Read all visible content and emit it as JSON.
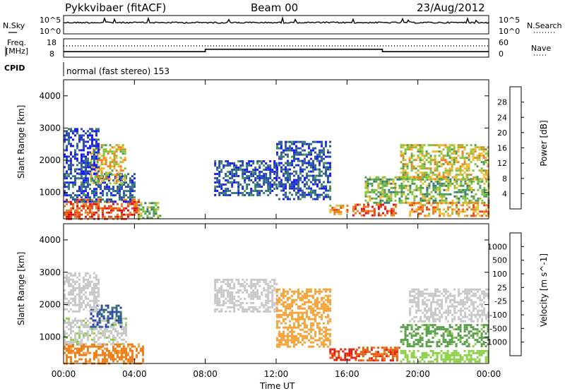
{
  "header": {
    "radar": "Pykkvibaer (fitACF)",
    "beam": "Beam 00",
    "date": "23/Aug/2012"
  },
  "top_panels": {
    "nsky_label": "N.Sky",
    "nsky_ticks": [
      "10^5",
      "10^0"
    ],
    "nsearch_label": "N.Search",
    "nsearch_ticks": [
      "10^5",
      "10^0"
    ],
    "freq_label": "Freq.",
    "freq_unit": "[MHz]",
    "freq_ticks": [
      "18",
      "8"
    ],
    "nave_label": "Nave",
    "nave_ticks": [
      "60",
      "0"
    ],
    "cpid_label": "CPID",
    "cpid_text": "normal (fast stereo) 153"
  },
  "colors": {
    "power_scale": [
      "#1a1aff",
      "#2a4ea8",
      "#36787a",
      "#4f9f4f",
      "#84c33c",
      "#f2b830",
      "#f07f1a",
      "#e84a14",
      "#e01010"
    ],
    "velocity_scale": [
      "#2838b8",
      "#2f5c8e",
      "#3a7f6c",
      "#5aa04a",
      "#8cd048",
      "#c8c8c8",
      "#f4a43a",
      "#f07e16",
      "#ec5a12",
      "#e02010"
    ]
  },
  "chart_data": [
    {
      "type": "heatmap",
      "ylabel": "Slant Range [km]",
      "xlabel": "",
      "xlim": [
        0,
        24
      ],
      "ylim": [
        180,
        4500
      ],
      "xticks": [
        "00:00",
        "04:00",
        "08:00",
        "12:00",
        "16:00",
        "20:00",
        "00:00"
      ],
      "yticks": [
        "1000",
        "2000",
        "3000",
        "4000"
      ],
      "colorbar_label": "Power [dB]",
      "colorbar_ticks": [
        "4",
        "8",
        "12",
        "16",
        "20",
        "24",
        "28"
      ],
      "regions": [
        {
          "t0": 0.0,
          "t1": 4.2,
          "r0": 200,
          "r1": 800,
          "level": 28
        },
        {
          "t0": 4.2,
          "t1": 5.5,
          "r0": 200,
          "r1": 700,
          "level": 16
        },
        {
          "t0": 0.0,
          "t1": 4.0,
          "r0": 700,
          "r1": 1600,
          "level": 8
        },
        {
          "t0": 1.5,
          "t1": 3.5,
          "r0": 1300,
          "r1": 2500,
          "level": 20
        },
        {
          "t0": 0.0,
          "t1": 2.0,
          "r0": 1600,
          "r1": 3000,
          "level": 6
        },
        {
          "t0": 8.5,
          "t1": 12.0,
          "r0": 900,
          "r1": 2000,
          "level": 8
        },
        {
          "t0": 12.0,
          "t1": 15.0,
          "r0": 800,
          "r1": 2600,
          "level": 8
        },
        {
          "t0": 15.0,
          "t1": 16.0,
          "r0": 320,
          "r1": 620,
          "level": 24
        },
        {
          "t0": 16.3,
          "t1": 18.8,
          "r0": 300,
          "r1": 650,
          "level": 28
        },
        {
          "t0": 17.0,
          "t1": 24.0,
          "r0": 700,
          "r1": 1500,
          "level": 16
        },
        {
          "t0": 19.0,
          "t1": 24.0,
          "r0": 1400,
          "r1": 2500,
          "level": 20
        },
        {
          "t0": 19.5,
          "t1": 24.0,
          "r0": 250,
          "r1": 700,
          "level": 24
        }
      ]
    },
    {
      "type": "heatmap",
      "ylabel": "Slant Range [km]",
      "xlabel": "Time UT",
      "xlim": [
        0,
        24
      ],
      "ylim": [
        180,
        4500
      ],
      "xticks": [
        "00:00",
        "04:00",
        "08:00",
        "12:00",
        "16:00",
        "20:00",
        "00:00"
      ],
      "yticks": [
        "1000",
        "2000",
        "3000",
        "4000"
      ],
      "colorbar_label": "Velocity [m s^-1]",
      "colorbar_ticks": [
        "1000",
        "500",
        "100",
        "25",
        "-25",
        "-100",
        "-500",
        "-1000"
      ],
      "regions": [
        {
          "t0": 0.0,
          "t1": 4.5,
          "r0": 200,
          "r1": 800,
          "level": -150
        },
        {
          "t0": 0.0,
          "t1": 3.5,
          "r0": 800,
          "r1": 1600,
          "level": 15
        },
        {
          "t0": 1.5,
          "t1": 3.2,
          "r0": 1300,
          "r1": 2000,
          "level": 800
        },
        {
          "t0": 0.0,
          "t1": 2.0,
          "r0": 1800,
          "r1": 3000,
          "level": 10
        },
        {
          "t0": 8.5,
          "t1": 12.0,
          "r0": 1800,
          "r1": 2800,
          "level": 10
        },
        {
          "t0": 12.0,
          "t1": 15.0,
          "r0": 700,
          "r1": 2500,
          "level": -60
        },
        {
          "t0": 15.0,
          "t1": 16.5,
          "r0": 300,
          "r1": 650,
          "level": -600
        },
        {
          "t0": 16.5,
          "t1": 19.0,
          "r0": 280,
          "r1": 700,
          "level": -400
        },
        {
          "t0": 19.0,
          "t1": 24.0,
          "r0": 700,
          "r1": 1400,
          "level": 150
        },
        {
          "t0": 19.5,
          "t1": 24.0,
          "r0": 1500,
          "r1": 2500,
          "level": 10
        },
        {
          "t0": 19.0,
          "t1": 24.0,
          "r0": 250,
          "r1": 600,
          "level": 60
        }
      ]
    }
  ]
}
